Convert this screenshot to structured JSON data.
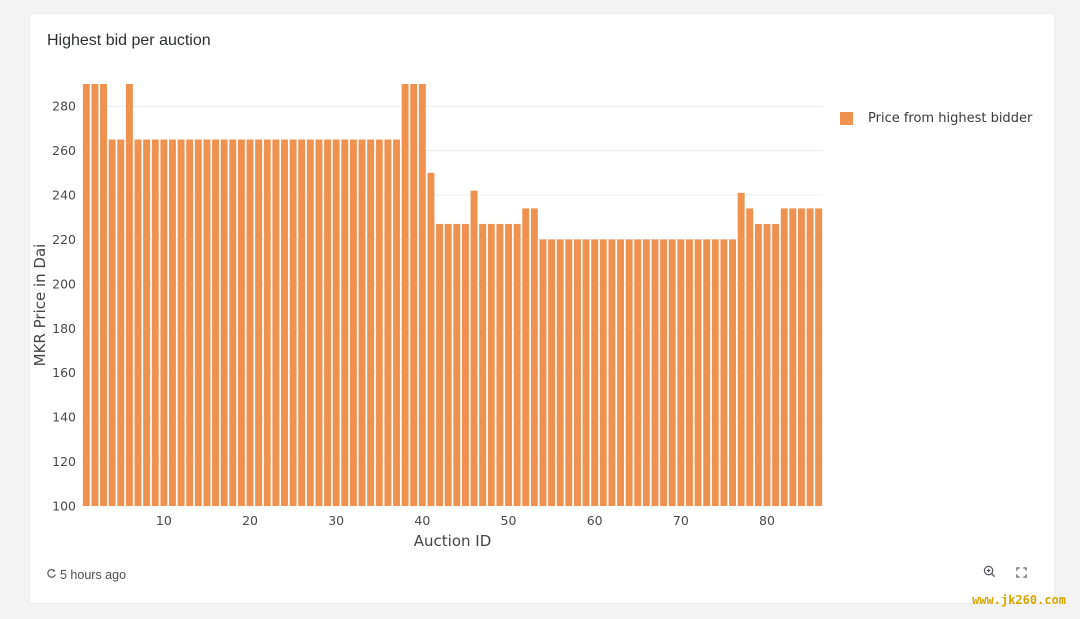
{
  "card": {
    "title": "Highest bid per auction"
  },
  "chart_data": {
    "type": "bar",
    "title": "Highest bid per auction",
    "xlabel": "Auction ID",
    "ylabel": "MKR Price in Dai",
    "ylim": [
      100,
      290
    ],
    "xlim": [
      0.5,
      86.5
    ],
    "x_ticks": [
      10,
      20,
      30,
      40,
      50,
      60,
      70,
      80
    ],
    "y_ticks": [
      100,
      120,
      140,
      160,
      180,
      200,
      220,
      240,
      260,
      280
    ],
    "grid": true,
    "legend_position": "right",
    "series": [
      {
        "name": "Price from highest bidder",
        "color": "#ef9250",
        "x": [
          1,
          2,
          3,
          4,
          5,
          6,
          7,
          8,
          9,
          10,
          11,
          12,
          13,
          14,
          15,
          16,
          17,
          18,
          19,
          20,
          21,
          22,
          23,
          24,
          25,
          26,
          27,
          28,
          29,
          30,
          31,
          32,
          33,
          34,
          35,
          36,
          37,
          38,
          39,
          40,
          41,
          42,
          43,
          44,
          45,
          46,
          47,
          48,
          49,
          50,
          51,
          52,
          53,
          54,
          55,
          56,
          57,
          58,
          59,
          60,
          61,
          62,
          63,
          64,
          65,
          66,
          67,
          68,
          69,
          70,
          71,
          72,
          73,
          74,
          75,
          76,
          77,
          78,
          79,
          80,
          81,
          82,
          83,
          84,
          85,
          86
        ],
        "values": [
          290,
          290,
          290,
          265,
          265,
          290,
          265,
          265,
          265,
          265,
          265,
          265,
          265,
          265,
          265,
          265,
          265,
          265,
          265,
          265,
          265,
          265,
          265,
          265,
          265,
          265,
          265,
          265,
          265,
          265,
          265,
          265,
          265,
          265,
          265,
          265,
          265,
          290,
          290,
          290,
          250,
          227,
          227,
          227,
          227,
          242,
          227,
          227,
          227,
          227,
          227,
          234,
          234,
          220,
          220,
          220,
          220,
          220,
          220,
          220,
          220,
          220,
          220,
          220,
          220,
          220,
          220,
          220,
          220,
          220,
          220,
          220,
          220,
          220,
          220,
          220,
          241,
          234,
          227,
          227,
          227,
          234,
          234,
          234,
          234,
          234
        ]
      }
    ]
  },
  "footer": {
    "updated": "5 hours ago",
    "refresh_icon": "refresh-icon",
    "zoom_icon": "zoom-icon",
    "expand_icon": "expand-icon"
  },
  "watermark": {
    "text": "www.jk260.com"
  }
}
